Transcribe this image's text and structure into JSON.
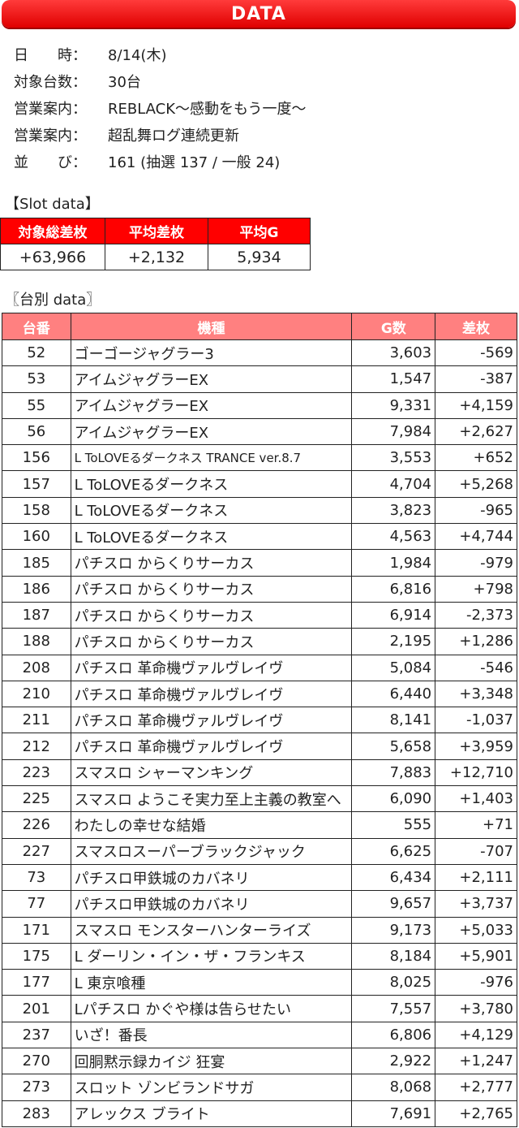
{
  "header": {
    "title": "DATA"
  },
  "info": [
    {
      "label": "日　　時：",
      "value": "8/14(木)"
    },
    {
      "label": "対象台数：",
      "value": "30台"
    },
    {
      "label": "営業案内：",
      "value": "REBLACK〜感動をもう一度〜"
    },
    {
      "label": "営業案内：",
      "value": "超乱舞ログ連続更新"
    },
    {
      "label": "並　　び：",
      "value": "161 (抽選 137 / 一般 24)"
    }
  ],
  "slot_section": {
    "title": "【Slot data】",
    "headers": [
      "対象総差枚",
      "平均差枚",
      "平均G"
    ],
    "values": [
      "+63,966",
      "+2,132",
      "5,934"
    ]
  },
  "unit_section": {
    "title": "〖台別 data〗",
    "headers": [
      "台番",
      "機種",
      "G数",
      "差枚"
    ],
    "rows": [
      {
        "num": "52",
        "model": "ゴーゴージャグラー3",
        "g": "3,603",
        "diff": "-569"
      },
      {
        "num": "53",
        "model": "アイムジャグラーEX",
        "g": "1,547",
        "diff": "-387"
      },
      {
        "num": "55",
        "model": "アイムジャグラーEX",
        "g": "9,331",
        "diff": "+4,159"
      },
      {
        "num": "56",
        "model": "アイムジャグラーEX",
        "g": "7,984",
        "diff": "+2,627"
      },
      {
        "num": "156",
        "model": "L ToLOVEるダークネス TRANCE ver.8.7",
        "g": "3,553",
        "diff": "+652"
      },
      {
        "num": "157",
        "model": "L ToLOVEるダークネス",
        "g": "4,704",
        "diff": "+5,268"
      },
      {
        "num": "158",
        "model": "L ToLOVEるダークネス",
        "g": "3,823",
        "diff": "-965"
      },
      {
        "num": "160",
        "model": "L ToLOVEるダークネス",
        "g": "4,563",
        "diff": "+4,744"
      },
      {
        "num": "185",
        "model": "パチスロ からくりサーカス",
        "g": "1,984",
        "diff": "-979"
      },
      {
        "num": "186",
        "model": "パチスロ からくりサーカス",
        "g": "6,816",
        "diff": "+798"
      },
      {
        "num": "187",
        "model": "パチスロ からくりサーカス",
        "g": "6,914",
        "diff": "-2,373"
      },
      {
        "num": "188",
        "model": "パチスロ からくりサーカス",
        "g": "2,195",
        "diff": "+1,286"
      },
      {
        "num": "208",
        "model": "パチスロ 革命機ヴァルヴレイヴ",
        "g": "5,084",
        "diff": "-546"
      },
      {
        "num": "210",
        "model": "パチスロ 革命機ヴァルヴレイヴ",
        "g": "6,440",
        "diff": "+3,348"
      },
      {
        "num": "211",
        "model": "パチスロ 革命機ヴァルヴレイヴ",
        "g": "8,141",
        "diff": "-1,037"
      },
      {
        "num": "212",
        "model": "パチスロ 革命機ヴァルヴレイヴ",
        "g": "5,658",
        "diff": "+3,959"
      },
      {
        "num": "223",
        "model": "スマスロ シャーマンキング",
        "g": "7,883",
        "diff": "+12,710"
      },
      {
        "num": "225",
        "model": "スマスロ ようこそ実力至上主義の教室へ",
        "g": "6,090",
        "diff": "+1,403"
      },
      {
        "num": "226",
        "model": "わたしの幸せな結婚",
        "g": "555",
        "diff": "+71"
      },
      {
        "num": "227",
        "model": "スマスロスーパーブラックジャック",
        "g": "6,625",
        "diff": "-707"
      },
      {
        "num": "73",
        "model": "パチスロ甲鉄城のカバネリ",
        "g": "6,434",
        "diff": "+2,111"
      },
      {
        "num": "77",
        "model": "パチスロ甲鉄城のカバネリ",
        "g": "9,657",
        "diff": "+3,737"
      },
      {
        "num": "171",
        "model": "スマスロ モンスターハンターライズ",
        "g": "9,173",
        "diff": "+5,033"
      },
      {
        "num": "175",
        "model": "L ダーリン・イン・ザ・フランキス",
        "g": "8,184",
        "diff": "+5,901"
      },
      {
        "num": "177",
        "model": "L 東京喰種",
        "g": "8,025",
        "diff": "-976"
      },
      {
        "num": "201",
        "model": "Lパチスロ かぐや様は告らせたい",
        "g": "7,557",
        "diff": "+3,780"
      },
      {
        "num": "237",
        "model": "いざ！番長",
        "g": "6,806",
        "diff": "+4,129"
      },
      {
        "num": "270",
        "model": "回胴黙示録カイジ 狂宴",
        "g": "2,922",
        "diff": "+1,247"
      },
      {
        "num": "273",
        "model": "スロット ゾンビランドサガ",
        "g": "8,068",
        "diff": "+2,777"
      },
      {
        "num": "283",
        "model": "アレックス ブライト",
        "g": "7,691",
        "diff": "+2,765"
      }
    ]
  }
}
